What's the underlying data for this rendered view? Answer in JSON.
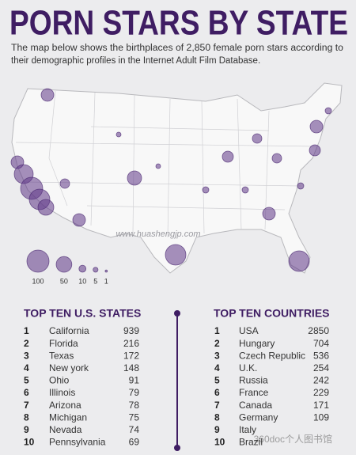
{
  "header": {
    "title": "PORN STARS BY STATE",
    "subtitle_lines": [
      "The map below shows the birthplaces of 2,850 female porn stars according to",
      "their demographic profiles in the Internet Adult Film Database."
    ]
  },
  "map": {
    "watermark": "www.huashengjp.com",
    "legend": [
      100,
      50,
      10,
      5,
      1
    ]
  },
  "states": {
    "heading": "TOP TEN U.S. STATES",
    "rows": [
      {
        "rank": 1,
        "name": "California",
        "count": 939
      },
      {
        "rank": 2,
        "name": "Florida",
        "count": 216
      },
      {
        "rank": 3,
        "name": "Texas",
        "count": 172
      },
      {
        "rank": 4,
        "name": "New york",
        "count": 148
      },
      {
        "rank": 5,
        "name": "Ohio",
        "count": 91
      },
      {
        "rank": 6,
        "name": "Illinois",
        "count": 79
      },
      {
        "rank": 7,
        "name": "Arizona",
        "count": 78
      },
      {
        "rank": 8,
        "name": "Michigan",
        "count": 75
      },
      {
        "rank": 9,
        "name": "Nevada",
        "count": 74
      },
      {
        "rank": 10,
        "name": "Pennsylvania",
        "count": 69
      }
    ]
  },
  "countries": {
    "heading": "TOP TEN COUNTRIES",
    "rows": [
      {
        "rank": 1,
        "name": "USA",
        "count": 2850
      },
      {
        "rank": 2,
        "name": "Hungary",
        "count": 704
      },
      {
        "rank": 3,
        "name": "Czech Republic",
        "count": 536
      },
      {
        "rank": 4,
        "name": "U.K.",
        "count": 254
      },
      {
        "rank": 5,
        "name": "Russia",
        "count": 242
      },
      {
        "rank": 6,
        "name": "France",
        "count": 229
      },
      {
        "rank": 7,
        "name": "Canada",
        "count": 171
      },
      {
        "rank": 8,
        "name": "Germany",
        "count": 109
      },
      {
        "rank": 9,
        "name": "Italy",
        "count": null
      },
      {
        "rank": 10,
        "name": "Brazil",
        "count": null
      }
    ]
  },
  "watermark": "360doc个人图书馆"
}
